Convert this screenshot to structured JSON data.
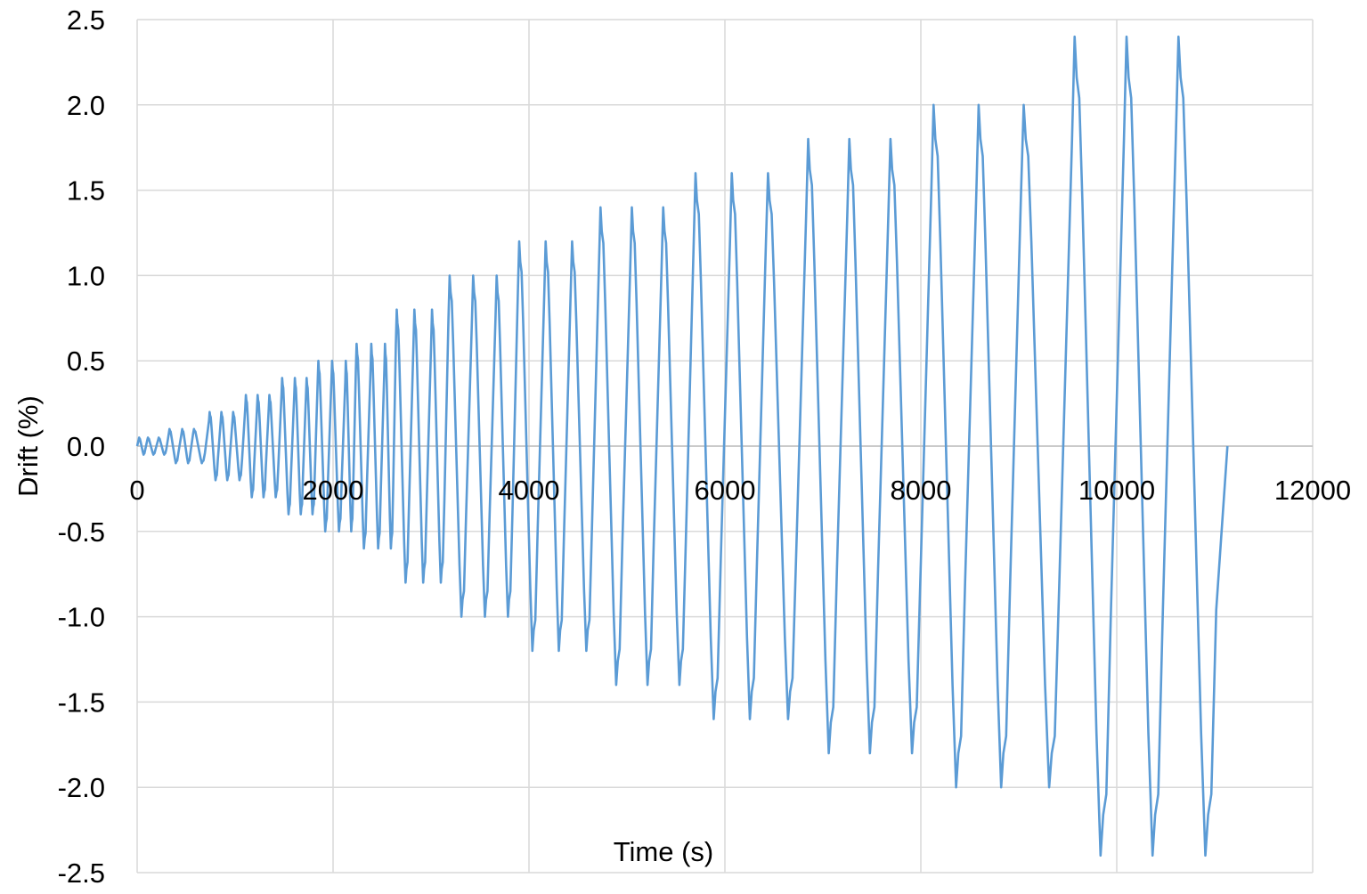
{
  "chart_data": {
    "type": "line",
    "title": "",
    "xlabel": "Time (s)",
    "ylabel": "Drift (%)",
    "xlim": [
      0,
      12000
    ],
    "ylim": [
      -2.5,
      2.5
    ],
    "x_ticks": [
      "0",
      "2000",
      "4000",
      "6000",
      "8000",
      "10000",
      "12000"
    ],
    "y_ticks": [
      "2.5",
      "2.0",
      "1.5",
      "1.0",
      "0.5",
      "0.0",
      "-0.5",
      "-1.0",
      "-1.5",
      "-2.0",
      "-2.5"
    ],
    "grid": true,
    "legend": "none",
    "colors": {
      "series": "#5b9bd5",
      "grid": "#d9d9d9"
    },
    "series": [
      {
        "cycles": [
          {
            "amplitude": 0.05,
            "peak_times": [
              20,
              110,
              220
            ]
          },
          {
            "amplitude": 0.1,
            "peak_times": [
              330,
              460,
              580
            ]
          },
          {
            "amplitude": 0.2,
            "peak_times": [
              740,
              860,
              980
            ]
          },
          {
            "amplitude": 0.3,
            "peak_times": [
              1110,
              1230,
              1350
            ]
          },
          {
            "amplitude": 0.4,
            "peak_times": [
              1480,
              1610,
              1730
            ]
          },
          {
            "amplitude": 0.5,
            "peak_times": [
              1850,
              1990,
              2130
            ]
          },
          {
            "amplitude": 0.6,
            "peak_times": [
              2240,
              2390,
              2530
            ]
          },
          {
            "amplitude": 0.8,
            "peak_times": [
              2650,
              2830,
              3010
            ]
          },
          {
            "amplitude": 1.0,
            "peak_times": [
              3190,
              3430,
              3670
            ]
          },
          {
            "amplitude": 1.2,
            "peak_times": [
              3900,
              4170,
              4440
            ]
          },
          {
            "amplitude": 1.4,
            "peak_times": [
              4730,
              5050,
              5370
            ]
          },
          {
            "amplitude": 1.6,
            "peak_times": [
              5700,
              6070,
              6440
            ]
          },
          {
            "amplitude": 1.8,
            "peak_times": [
              6850,
              7270,
              7690
            ]
          },
          {
            "amplitude": 2.0,
            "peak_times": [
              8130,
              8590,
              9050
            ]
          },
          {
            "amplitude": 2.4,
            "peak_times": [
              9570,
              10100,
              10630
            ]
          }
        ],
        "end_time": 11130,
        "end_value": 0.0
      }
    ]
  }
}
